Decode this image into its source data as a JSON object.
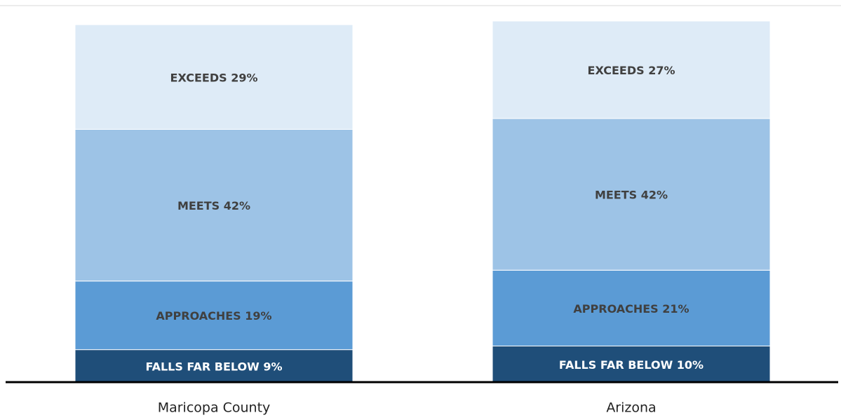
{
  "chart_data": {
    "type": "stacked_bar",
    "categories": [
      "Maricopa County",
      "Arizona"
    ],
    "series": [
      {
        "color": "#1f4e79",
        "values": [
          9,
          10
        ],
        "value_labels": [
          "FALLS FAR BELOW 9%",
          "FALLS FAR BELOW 10%"
        ]
      },
      {
        "color": "#5b9bd5",
        "values": [
          19,
          21
        ],
        "value_labels": [
          "APPROACHES 19%",
          "APPROACHES 21%"
        ]
      },
      {
        "color": "#9dc3e6",
        "values": [
          42,
          42
        ],
        "value_labels": [
          "MEETS 42%",
          "MEETS 42%"
        ]
      },
      {
        "color": "#deebf7",
        "values": [
          29,
          27
        ],
        "value_labels": [
          "EXCEEDS 29%",
          "EXCEEDS 27%"
        ]
      }
    ],
    "ylim": [
      0,
      100
    ]
  }
}
